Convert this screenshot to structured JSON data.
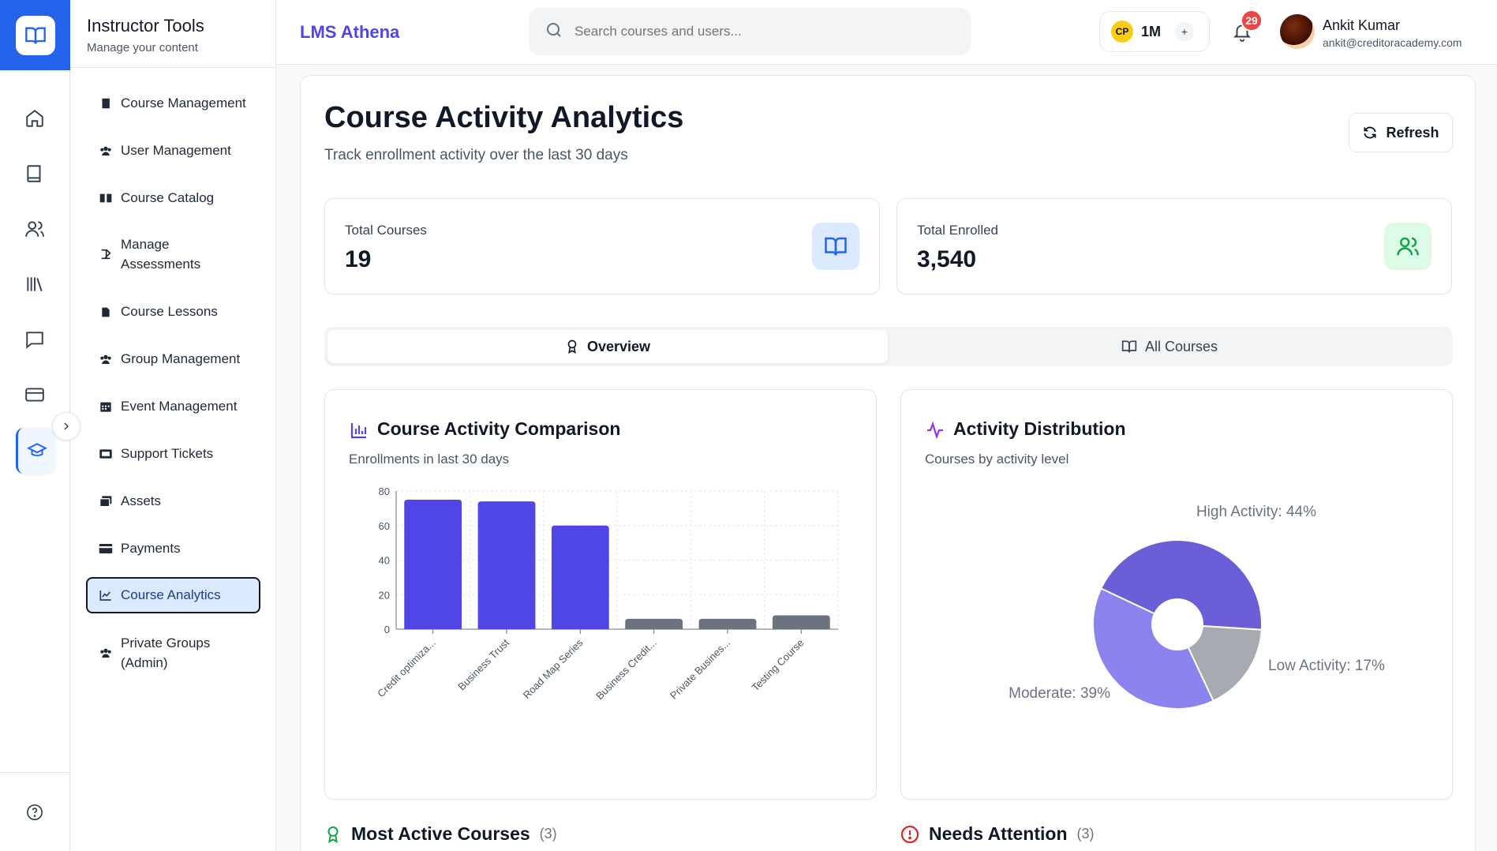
{
  "sidebar": {
    "title": "Instructor Tools",
    "subtitle": "Manage your content",
    "items": [
      {
        "label": "Course Management",
        "icon": "book-icon"
      },
      {
        "label": "User Management",
        "icon": "users-icon"
      },
      {
        "label": "Course Catalog",
        "icon": "open-book-icon"
      },
      {
        "label": "Manage Assessments",
        "icon": "edit-icon"
      },
      {
        "label": "Course Lessons",
        "icon": "file-icon"
      },
      {
        "label": "Group Management",
        "icon": "users-icon"
      },
      {
        "label": "Event Management",
        "icon": "calendar-icon"
      },
      {
        "label": "Support Tickets",
        "icon": "ticket-icon"
      },
      {
        "label": "Assets",
        "icon": "images-icon"
      },
      {
        "label": "Payments",
        "icon": "credit-card-icon"
      },
      {
        "label": "Course Analytics",
        "icon": "chart-line-icon"
      },
      {
        "label": "Private Groups (Admin)",
        "icon": "users-icon"
      }
    ],
    "active_index": 10
  },
  "header": {
    "brand": "LMS Athena",
    "search_placeholder": "Search courses and users...",
    "points_badge": "CP",
    "points_value": "1M",
    "points_add": "+",
    "notification_count": "29",
    "user_name": "Ankit Kumar",
    "user_email": "ankit@creditoracademy.com"
  },
  "page": {
    "title": "Course Activity Analytics",
    "subtitle": "Track enrollment activity over the last 30 days",
    "refresh_label": "Refresh"
  },
  "stats": [
    {
      "label": "Total Courses",
      "value": "19",
      "icon": "book-open-icon",
      "accent": "#2563eb"
    },
    {
      "label": "Total Enrolled",
      "value": "3,540",
      "icon": "users-icon",
      "accent": "#16a34a"
    }
  ],
  "tabs": [
    {
      "label": "Overview",
      "icon": "award-icon",
      "active": true
    },
    {
      "label": "All Courses",
      "icon": "book-open-icon",
      "active": false
    }
  ],
  "bar_panel": {
    "title": "Course Activity Comparison",
    "subtitle": "Enrollments in last 30 days"
  },
  "pie_panel": {
    "title": "Activity Distribution",
    "subtitle": "Courses by activity level"
  },
  "sections": {
    "most_active": {
      "title": "Most Active Courses",
      "count": "(3)"
    },
    "needs_attention": {
      "title": "Needs Attention",
      "count": "(3)"
    }
  },
  "chart_data": [
    {
      "type": "bar",
      "categories": [
        "Credit optimiza...",
        "Business Trust",
        "Road Map Series",
        "Business Credit...",
        "Private Busines...",
        "Testing Course"
      ],
      "values": [
        75,
        74,
        60,
        6,
        6,
        8
      ],
      "colors": [
        "#4f46e5",
        "#4f46e5",
        "#4f46e5",
        "#6b7280",
        "#6b7280",
        "#6b7280"
      ],
      "yticks": [
        0,
        20,
        40,
        60,
        80
      ],
      "ylim": [
        0,
        80
      ],
      "grid": true
    },
    {
      "type": "pie",
      "donut": true,
      "labels": [
        "High Activity: 44%",
        "Low Activity: 17%",
        "Moderate: 39%"
      ],
      "values": [
        44,
        17,
        39
      ],
      "colors": [
        "#6a5fd6",
        "#a8aab2",
        "#8b84ef"
      ]
    }
  ]
}
